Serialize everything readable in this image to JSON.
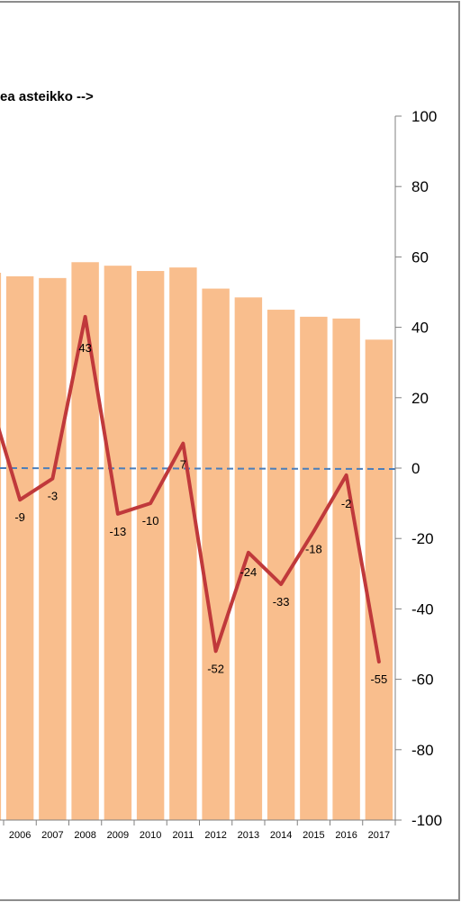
{
  "chart_data": {
    "type": "bar",
    "annotation": "ea asteikko -->",
    "categories": [
      "2006",
      "2007",
      "2008",
      "2009",
      "2010",
      "2011",
      "2012",
      "2013",
      "2014",
      "2015",
      "2016",
      "2017"
    ],
    "series": [
      {
        "type": "bar",
        "values": [
          54.5,
          54,
          58.5,
          57.5,
          56,
          57,
          51,
          48.5,
          45,
          43,
          42.5,
          36.5
        ]
      },
      {
        "type": "line",
        "values": [
          -9,
          -3,
          43,
          -13,
          -10,
          7,
          -52,
          -24,
          -33,
          -18,
          -2,
          -55
        ],
        "data_labels": [
          "-9",
          "-3",
          "43",
          "-13",
          "-10",
          "7",
          "-52",
          "-24",
          "-33",
          "-18",
          "-2",
          "-55"
        ]
      }
    ],
    "partial_previous_point": {
      "bar": 55.5,
      "line": 22
    },
    "reference_line": 0,
    "y_axis": {
      "position": "right",
      "range": [
        -100,
        100
      ],
      "ticks": [
        100,
        80,
        60,
        40,
        20,
        0,
        -20,
        -40,
        -60,
        -80,
        -100
      ]
    },
    "colors": {
      "bar": "#f9be8d",
      "line": "#c0393b",
      "reference_line": "#4a7ebb",
      "frame": "#8c8c8c"
    }
  }
}
